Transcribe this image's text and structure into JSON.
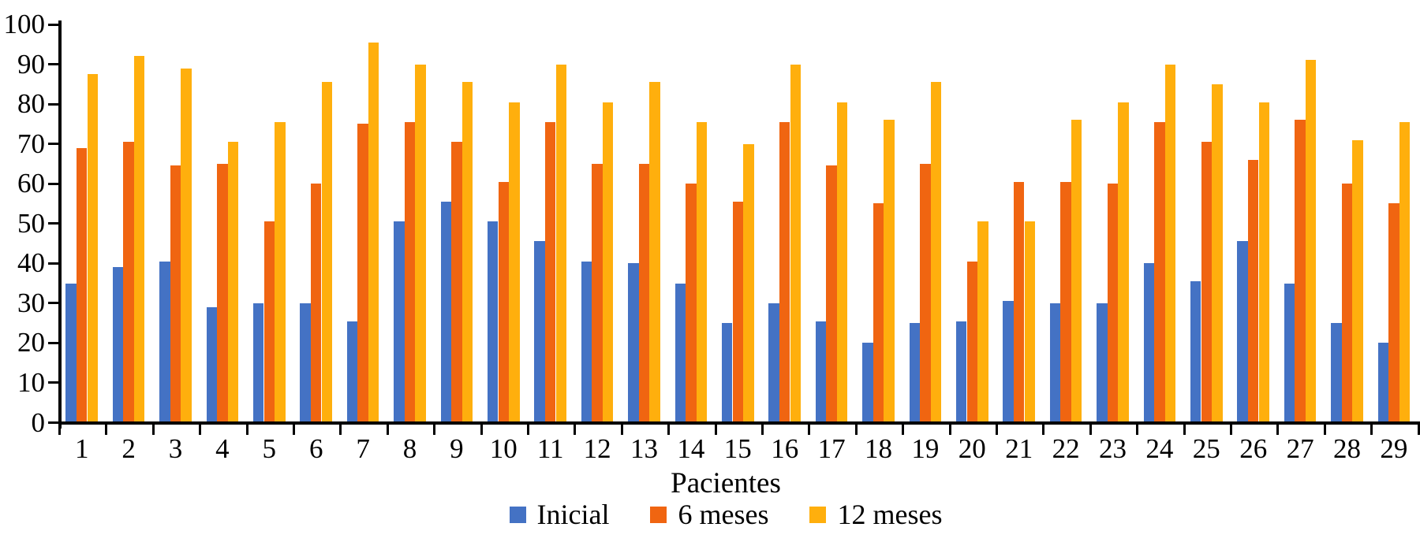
{
  "chart_data": {
    "type": "bar",
    "title": "",
    "xlabel": "Pacientes",
    "ylabel": "",
    "ylim": [
      0,
      100
    ],
    "yticks": [
      0,
      10,
      20,
      30,
      40,
      50,
      60,
      70,
      80,
      90,
      100
    ],
    "grid": false,
    "legend_position": "bottom",
    "axis_color": "#000000",
    "background_color": "#FFFFFF",
    "categories": [
      "1",
      "2",
      "3",
      "4",
      "5",
      "6",
      "7",
      "8",
      "9",
      "10",
      "11",
      "12",
      "13",
      "14",
      "15",
      "16",
      "17",
      "18",
      "19",
      "20",
      "21",
      "22",
      "23",
      "24",
      "25",
      "26",
      "27",
      "28",
      "29"
    ],
    "series": [
      {
        "name": "Inicial",
        "color": "#4472C4",
        "values": [
          35,
          39,
          40.5,
          29,
          30,
          30,
          25.5,
          50.5,
          55.5,
          50.5,
          45.5,
          40.5,
          40,
          35,
          25,
          30,
          25.5,
          20,
          25,
          25.5,
          30.5,
          30,
          30,
          40,
          35.5,
          45.5,
          35,
          25,
          20
        ]
      },
      {
        "name": "6 meses",
        "color": "#F06511",
        "values": [
          69,
          70.5,
          64.5,
          65,
          50.5,
          60,
          75,
          75.5,
          70.5,
          60.5,
          75.5,
          65,
          65,
          60,
          55.5,
          75.5,
          64.5,
          55,
          65,
          40.5,
          60.5,
          60.5,
          60,
          75.5,
          70.5,
          66,
          76,
          60,
          55
        ]
      },
      {
        "name": "12 meses",
        "color": "#FFAF0D",
        "values": [
          87.5,
          92,
          89,
          70.5,
          75.5,
          85.5,
          95.5,
          90,
          85.5,
          80.5,
          90,
          80.5,
          85.5,
          75.5,
          70,
          90,
          80.5,
          76,
          85.5,
          50.5,
          50.5,
          76,
          80.5,
          90,
          85,
          80.5,
          91,
          71,
          75.5
        ]
      }
    ]
  }
}
